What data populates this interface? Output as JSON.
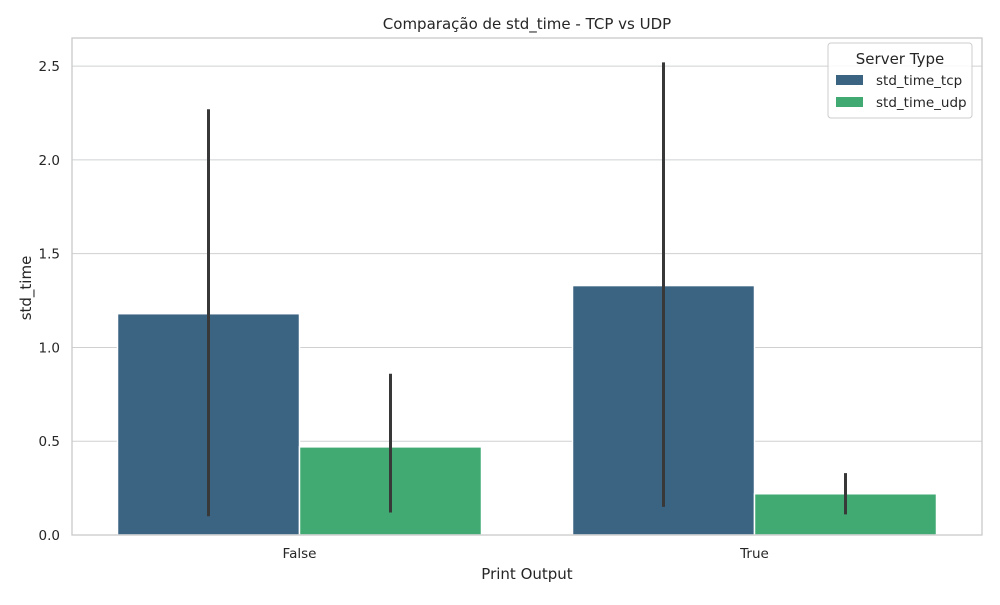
{
  "colors": {
    "tcp": "#3b6382",
    "udp": "#41aa73",
    "grid": "#cfd0d2",
    "spine": "#c8c8c8",
    "error_bar": "#383838",
    "legend_border": "#cccccc"
  },
  "chart_data": {
    "type": "bar",
    "title": "Comparação de std_time - TCP vs UDP",
    "xlabel": "Print Output",
    "ylabel": "std_time",
    "categories": [
      "False",
      "True"
    ],
    "ylim": [
      0,
      2.65
    ],
    "yticks": [
      0.0,
      0.5,
      1.0,
      1.5,
      2.0,
      2.5
    ],
    "ytick_labels": [
      "0.0",
      "0.5",
      "1.0",
      "1.5",
      "2.0",
      "2.5"
    ],
    "grid": "horizontal",
    "legend": {
      "title": "Server Type",
      "placement": "top-right"
    },
    "series": [
      {
        "name": "std_time_tcp",
        "color_key": "tcp",
        "values": [
          1.18,
          1.33
        ],
        "error_low": [
          0.1,
          0.15
        ],
        "error_high": [
          2.27,
          2.52
        ]
      },
      {
        "name": "std_time_udp",
        "color_key": "udp",
        "values": [
          0.47,
          0.22
        ],
        "error_low": [
          0.12,
          0.11
        ],
        "error_high": [
          0.86,
          0.33
        ]
      }
    ]
  }
}
